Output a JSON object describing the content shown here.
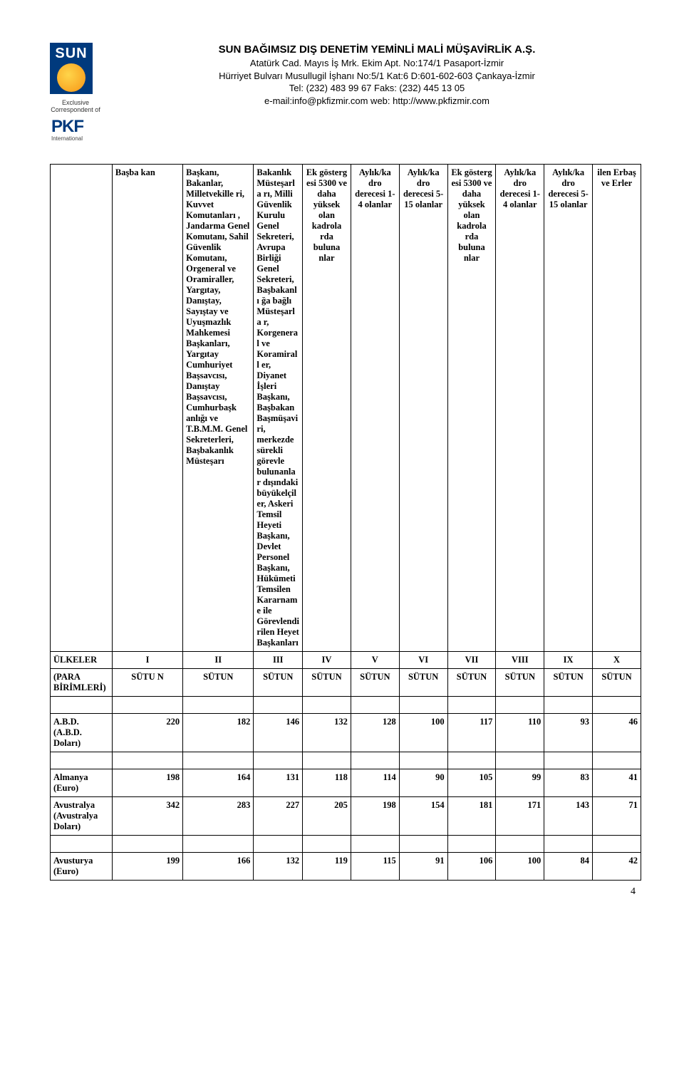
{
  "logos": {
    "sun_text": "SUN",
    "exclusive": "Exclusive\nCorrespondent of",
    "pkf_text": "PKF",
    "pkf_sub": "International"
  },
  "company": {
    "title": "SUN BAĞIMSIZ DIŞ DENETİM YEMİNLİ MALİ MÜŞAVİRLİK A.Ş.",
    "addr1": "Atatürk Cad. Mayıs İş Mrk. Ekim Apt. No:174/1 Pasaport-İzmir",
    "addr2": "Hürriyet Bulvarı Musullugil İşhanı No:5/1 Kat:6 D:601-602-603 Çankaya-İzmir",
    "tel": "Tel: (232) 483 99 67   Faks: (232) 445 13 05",
    "web": "e-mail:info@pkfizmir.com web: http://www.pkfizmir.com"
  },
  "table_headers": [
    "Başba kan",
    "Başkanı, Bakanlar, Milletvekille ri, Kuvvet Komutanları , Jandarma Genel Komutanı, Sahil Güvenlik Komutanı, Orgeneral ve Oramiraller, Yargıtay, Danıştay, Sayıştay ve Uyuşmazlık Mahkemesi Başkanları, Yargıtay Cumhuriyet Başsavcısı, Danıştay Başsavcısı, Cumhurbaşk anlığı ve T.B.M.M. Genel Sekreterleri, Başbakanlık Müsteşarı",
    "Bakanlık Müsteşarla rı, Milli Güvenlik Kurulu Genel Sekreteri, Avrupa Birliği Genel Sekreteri, Başbakanlı ğa bağlı Müsteşarla r, Korgenera l ve Koramirall er, Diyanet İşleri Başkanı, Başbakan Başmüşavi ri, merkezde sürekli görevle bulunanlar dışındaki büyükelçil er, Askeri Temsil Heyeti Başkanı, Devlet Personel Başkanı, Hükümeti Temsilen Kararnam e ile Görevlendi rilen Heyet Başkanları",
    "Ek gösterg esi 5300 ve daha yüksek olan kadrola rda buluna nlar",
    "Aylık/ka dro derecesi 1-4 olanlar",
    "Aylık/ka dro derecesi 5-15 olanlar",
    "Ek gösterg esi 5300 ve daha yüksek olan kadrola rda buluna nlar",
    "Aylık/ka dro derecesi 1-4 olanlar",
    "Aylık/ka dro derecesi 5-15 olanlar",
    "ilen Erbaş ve Erler"
  ],
  "countries_label": "ÜLKELER",
  "units_label": "(PARA BİRİMLERİ)",
  "column_ids": {
    "roman": [
      "I",
      "II",
      "III",
      "IV",
      "V",
      "VI",
      "VII",
      "VIII",
      "IX",
      "X"
    ],
    "sutun": [
      "SÜTU N",
      "SÜTUN",
      "SÜTUN",
      "SÜTUN",
      "SÜTUN",
      "SÜTUN",
      "SÜTUN",
      "SÜTUN",
      "SÜTUN",
      "SÜTUN"
    ]
  },
  "rows": [
    {
      "label": "A.B.D.\n(A.B.D. Doları)",
      "values": [
        220,
        182,
        146,
        132,
        128,
        100,
        117,
        110,
        93,
        46
      ]
    },
    {
      "label": "Almanya\n(Euro)",
      "values": [
        198,
        164,
        131,
        118,
        114,
        90,
        105,
        99,
        83,
        41
      ]
    },
    {
      "label": "Avustralya\n(Avustralya Doları)",
      "values": [
        342,
        283,
        227,
        205,
        198,
        154,
        181,
        171,
        143,
        71
      ]
    },
    {
      "label": "Avusturya\n(Euro)",
      "values": [
        199,
        166,
        132,
        119,
        115,
        91,
        106,
        100,
        84,
        42
      ]
    }
  ],
  "page_number": "4",
  "style": {
    "font_family": "Times New Roman",
    "header_font": "Comic Sans MS",
    "text_color": "#000000",
    "bg_color": "#ffffff",
    "logo_blue": "#003a7d",
    "logo_orange": "#f9a825",
    "border_color": "#000000",
    "body_fontsize": 12.5,
    "header_fontsize": 13,
    "title_fontsize": 15
  }
}
